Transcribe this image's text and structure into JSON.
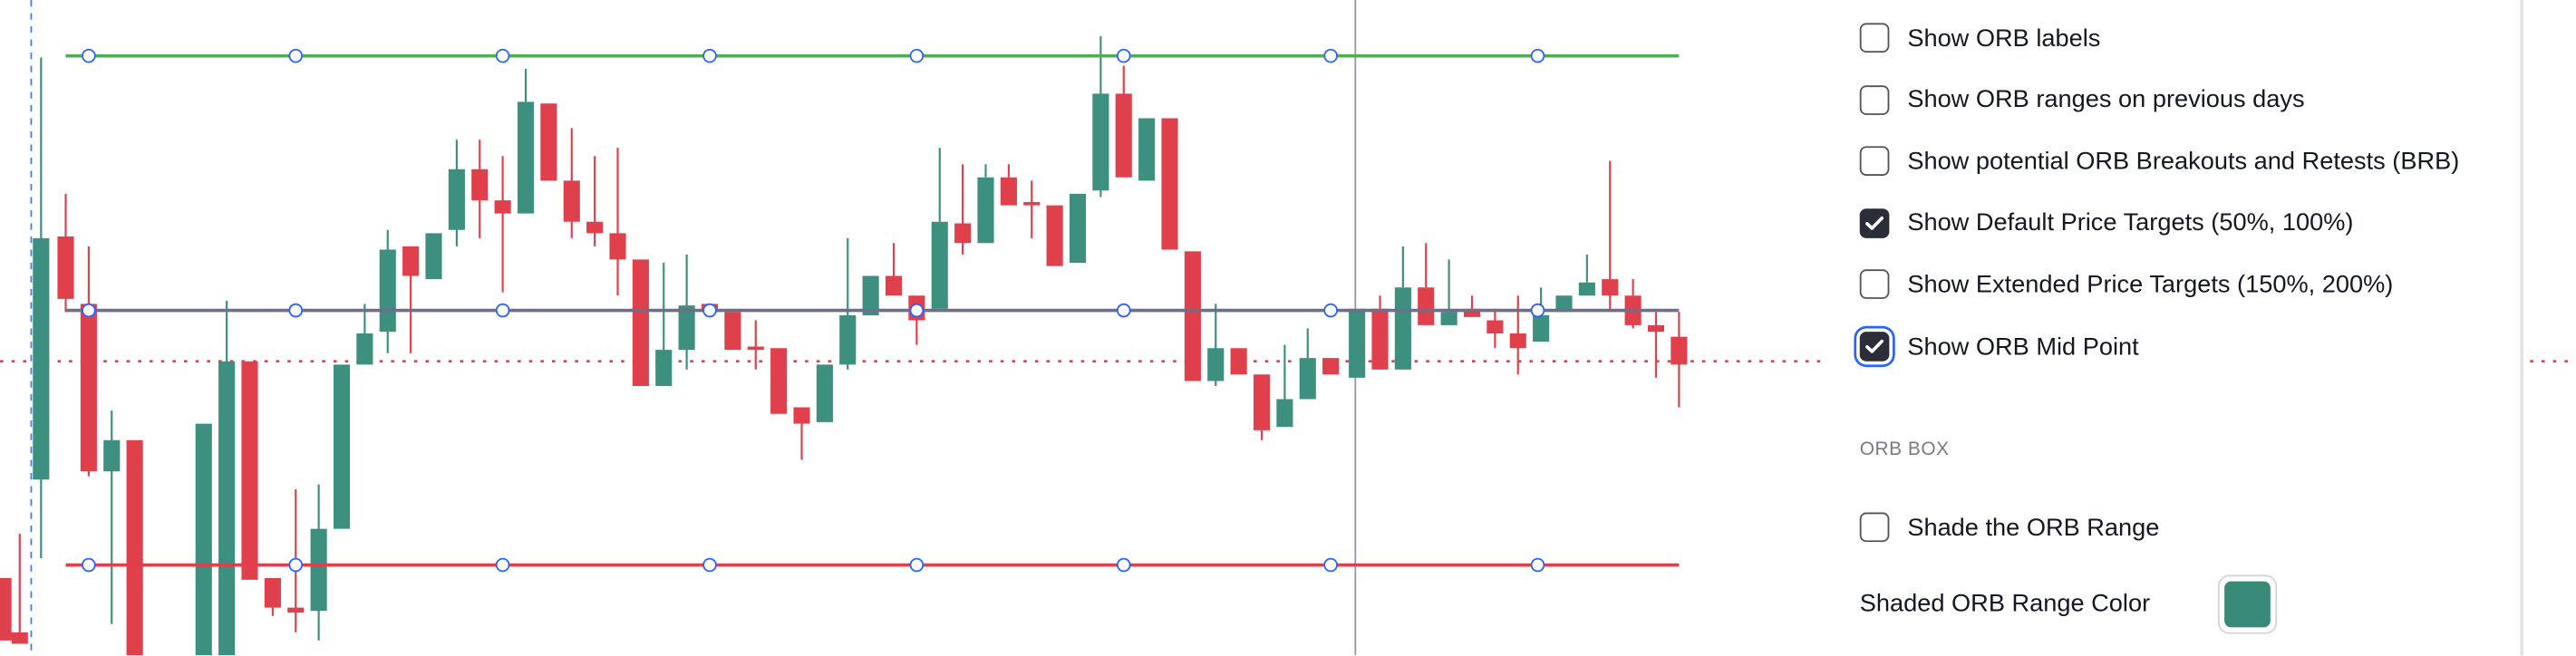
{
  "settings": {
    "checkboxes": [
      {
        "label": "Show ORB labels",
        "checked": false
      },
      {
        "label": "Show ORB ranges on previous days",
        "checked": false
      },
      {
        "label": "Show potential ORB Breakouts and Retests (BRB)",
        "checked": false
      },
      {
        "label": "Show Default Price Targets (50%, 100%)",
        "checked": true
      },
      {
        "label": "Show Extended Price Targets (150%, 200%)",
        "checked": false
      },
      {
        "label": "Show ORB Mid Point",
        "checked": true,
        "focused": true
      }
    ],
    "orb_box": {
      "title": "ORB BOX",
      "checkboxes": [
        {
          "label": "Shade the ORB Range",
          "checked": false
        }
      ],
      "color_label": "Shaded ORB Range Color",
      "color": "#3a8a7a"
    }
  }
}
